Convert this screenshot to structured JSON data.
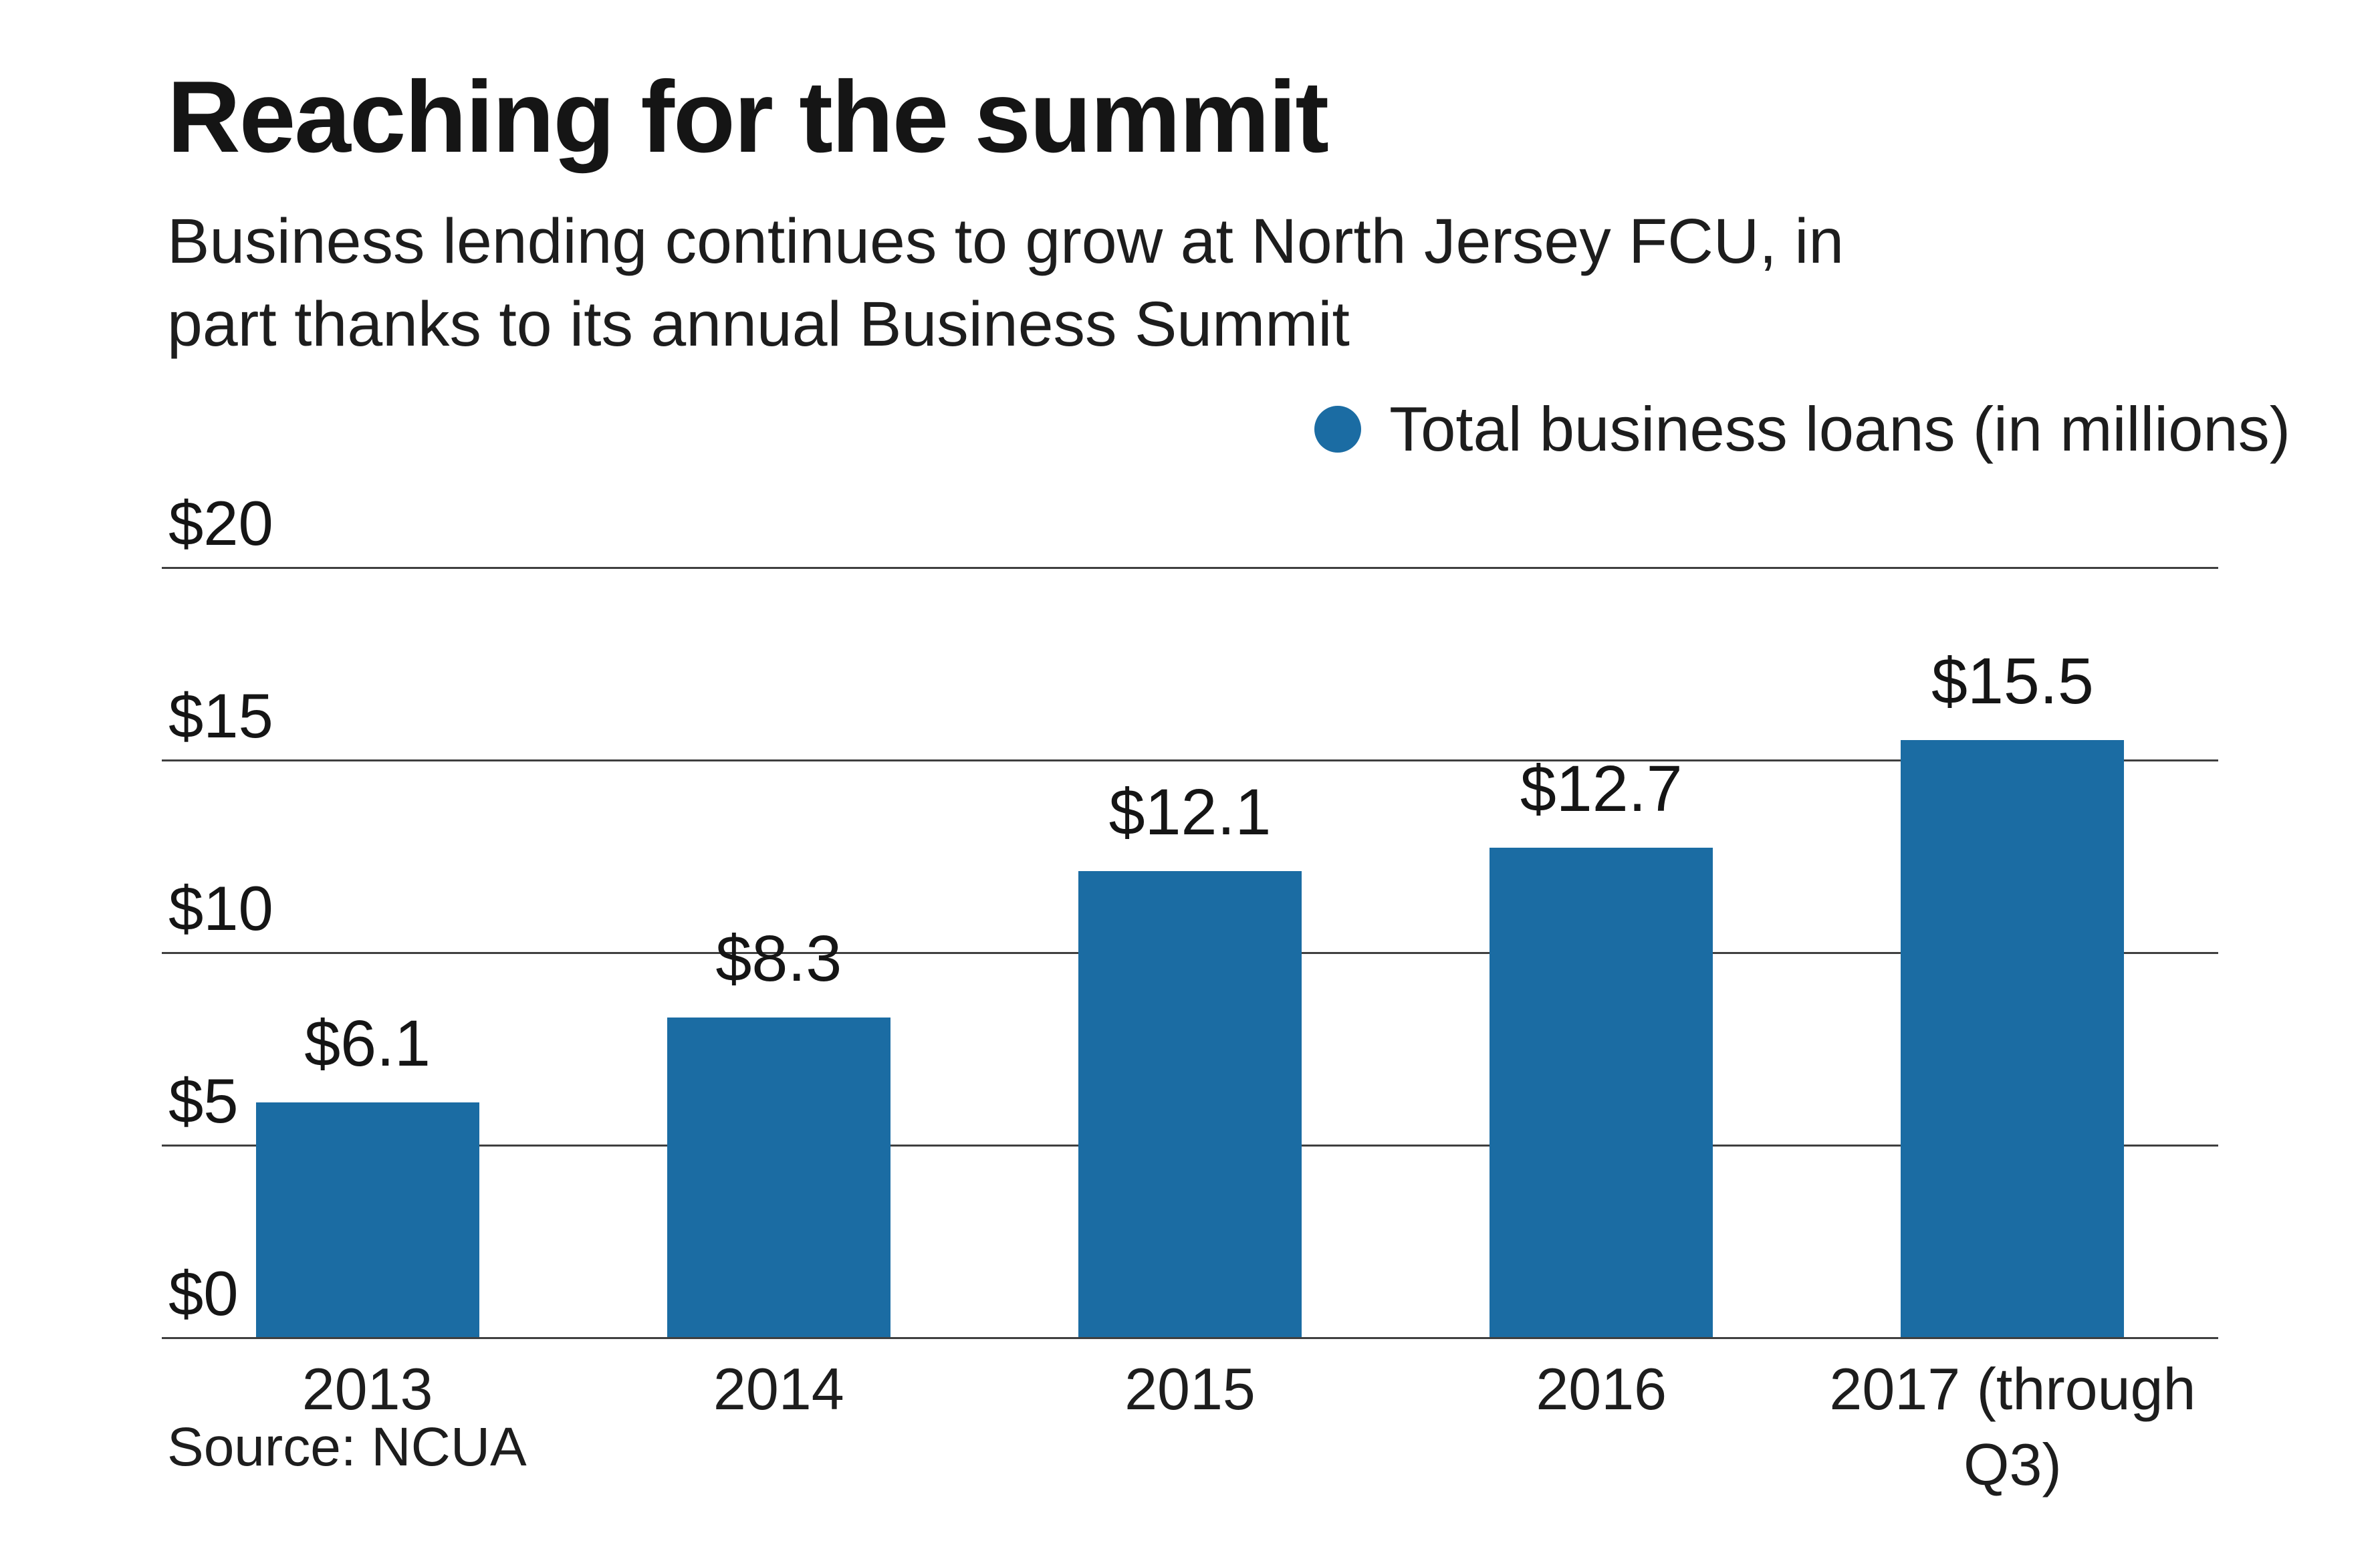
{
  "header": {
    "title": "Reaching for the summit",
    "subtitle": "Business lending continues to grow at North Jersey FCU, in\npart thanks to its annual Business Summit"
  },
  "legend": {
    "label": "Total business loans (in millions)",
    "marker_color": "#1B6CA3"
  },
  "source": "Source: NCUA",
  "chart_data": {
    "type": "bar",
    "title": "Reaching for the summit",
    "subtitle": "Business lending continues to grow at North Jersey FCU, in part thanks to its annual Business Summit",
    "series_name": "Total business loans (in millions)",
    "categories": [
      "2013",
      "2014",
      "2015",
      "2016",
      "2017 (through Q3)"
    ],
    "values": [
      6.1,
      8.3,
      12.1,
      12.7,
      15.5
    ],
    "value_labels": [
      "$6.1",
      "$8.3",
      "$12.1",
      "$12.7",
      "$15.5"
    ],
    "bar_color": "#1B6CA3",
    "xlabel": "",
    "ylabel": "",
    "ylim": [
      0,
      20
    ],
    "yticks": [
      0,
      5,
      10,
      15,
      20
    ],
    "ytick_labels": [
      "$0",
      "$5",
      "$10",
      "$15",
      "$20"
    ],
    "grid": true,
    "legend_position": "top-right",
    "source": "Source: NCUA"
  }
}
